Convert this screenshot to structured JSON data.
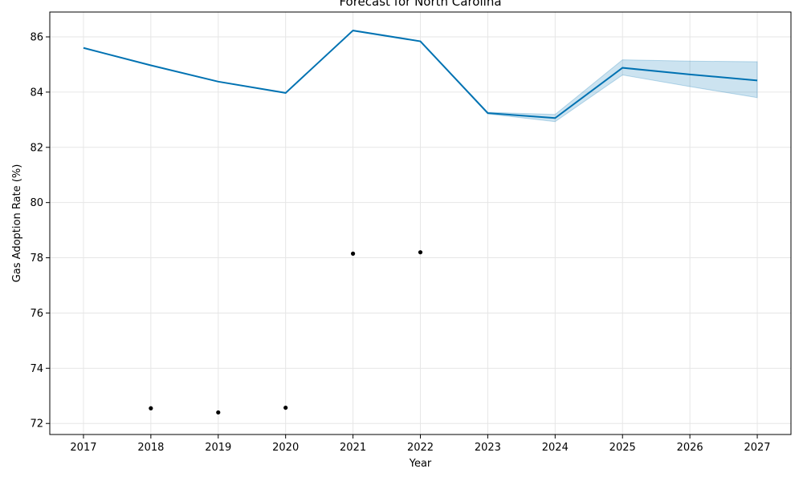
{
  "chart_data": {
    "type": "line",
    "title": "Forecast for North Carolina",
    "xlabel": "Year",
    "ylabel": "Gas Adoption Rate (%)",
    "xlim": [
      2016.5,
      2027.5
    ],
    "ylim": [
      71.6,
      86.9
    ],
    "x_ticks": [
      2017,
      2018,
      2019,
      2020,
      2021,
      2022,
      2023,
      2024,
      2025,
      2026,
      2027
    ],
    "y_ticks": [
      72,
      74,
      76,
      78,
      80,
      82,
      84,
      86
    ],
    "grid": true,
    "colors": {
      "forecast_line": "#0072b2",
      "interval_fill": "#0072b2",
      "observed_points": "#000000",
      "grid": "#e6e6e6"
    },
    "forecast": {
      "x": [
        2017,
        2018,
        2019,
        2020,
        2021,
        2022,
        2023,
        2024,
        2025,
        2026,
        2027
      ],
      "y": [
        85.6,
        84.97,
        84.38,
        83.97,
        86.23,
        85.84,
        83.24,
        83.06,
        84.88,
        84.64,
        84.42
      ],
      "lower": [
        85.6,
        84.97,
        84.38,
        83.97,
        86.23,
        85.84,
        83.21,
        82.93,
        84.62,
        84.2,
        83.8
      ],
      "upper": [
        85.6,
        84.97,
        84.38,
        83.97,
        86.23,
        85.84,
        83.27,
        83.19,
        85.17,
        85.12,
        85.1
      ]
    },
    "observed": {
      "x": [
        2018,
        2019,
        2020,
        2021,
        2022
      ],
      "y": [
        72.55,
        72.4,
        72.57,
        78.15,
        78.2
      ]
    }
  }
}
